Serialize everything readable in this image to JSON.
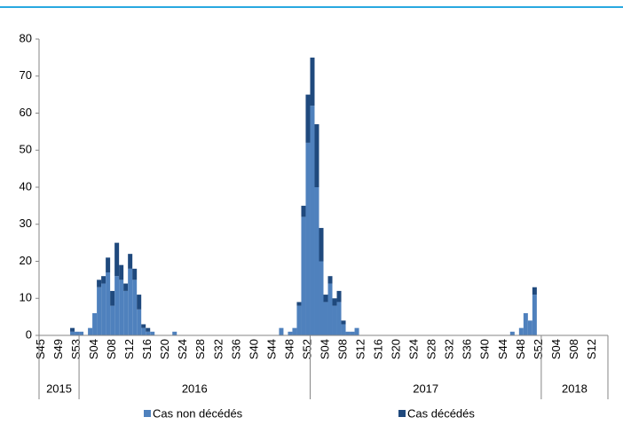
{
  "chart_data": {
    "type": "stacked_bar",
    "categories": [
      "S45",
      null,
      null,
      null,
      "S49",
      null,
      null,
      null,
      "S53",
      null,
      null,
      null,
      "S04",
      null,
      null,
      null,
      "S08",
      null,
      null,
      null,
      "S12",
      null,
      null,
      null,
      "S16",
      null,
      null,
      null,
      "S20",
      null,
      null,
      null,
      "S24",
      null,
      null,
      null,
      "S28",
      null,
      null,
      null,
      "S32",
      null,
      null,
      null,
      "S36",
      null,
      null,
      null,
      "S40",
      null,
      null,
      null,
      "S44",
      null,
      null,
      null,
      "S48",
      null,
      null,
      null,
      "S52",
      null,
      null,
      null,
      "S04",
      null,
      null,
      null,
      "S08",
      null,
      null,
      null,
      "S12",
      null,
      null,
      null,
      "S16",
      null,
      null,
      null,
      "S20",
      null,
      null,
      null,
      "S24",
      null,
      null,
      null,
      "S28",
      null,
      null,
      null,
      "S32",
      null,
      null,
      null,
      "S36",
      null,
      null,
      null,
      "S40",
      null,
      null,
      null,
      "S44",
      null,
      null,
      null,
      "S48",
      null,
      null,
      null,
      "S52",
      null,
      null,
      null,
      "S04",
      null,
      null,
      null,
      "S08",
      null,
      null,
      null,
      "S12",
      null,
      null,
      null
    ],
    "year_groups": [
      {
        "label": "2015",
        "weeks": 9
      },
      {
        "label": "2016",
        "weeks": 52
      },
      {
        "label": "2017",
        "weeks": 52
      },
      {
        "label": "2018",
        "weeks": 15
      }
    ],
    "series": [
      {
        "name": "Cas non décédés",
        "color": "#4f81bd",
        "values": [
          0,
          0,
          0,
          0,
          0,
          0,
          0,
          1,
          1,
          1,
          0,
          2,
          6,
          13,
          14,
          17,
          8,
          16,
          15,
          12,
          18,
          15,
          7,
          2,
          1,
          1,
          0,
          0,
          0,
          0,
          1,
          0,
          0,
          0,
          0,
          0,
          0,
          0,
          0,
          0,
          0,
          0,
          0,
          0,
          0,
          0,
          0,
          0,
          0,
          0,
          0,
          0,
          0,
          0,
          2,
          0,
          1,
          2,
          8,
          32,
          52,
          62,
          40,
          20,
          9,
          14,
          8,
          9,
          3,
          1,
          1,
          2,
          0,
          0,
          0,
          0,
          0,
          0,
          0,
          0,
          0,
          0,
          0,
          0,
          0,
          0,
          0,
          0,
          0,
          0,
          0,
          0,
          0,
          0,
          0,
          0,
          0,
          0,
          0,
          0,
          0,
          0,
          0,
          0,
          0,
          0,
          1,
          0,
          2,
          6,
          4,
          11,
          0,
          0,
          0,
          0,
          0,
          0,
          0,
          0,
          0,
          0,
          0,
          0,
          0,
          0,
          0,
          0
        ]
      },
      {
        "name": "Cas décédés",
        "color": "#1f497d",
        "values": [
          0,
          0,
          0,
          0,
          0,
          0,
          0,
          1,
          0,
          0,
          0,
          0,
          0,
          2,
          2,
          4,
          4,
          9,
          4,
          2,
          4,
          3,
          4,
          1,
          1,
          0,
          0,
          0,
          0,
          0,
          0,
          0,
          0,
          0,
          0,
          0,
          0,
          0,
          0,
          0,
          0,
          0,
          0,
          0,
          0,
          0,
          0,
          0,
          0,
          0,
          0,
          0,
          0,
          0,
          0,
          0,
          0,
          0,
          1,
          3,
          13,
          13,
          17,
          9,
          2,
          2,
          2,
          3,
          1,
          0,
          0,
          0,
          0,
          0,
          0,
          0,
          0,
          0,
          0,
          0,
          0,
          0,
          0,
          0,
          0,
          0,
          0,
          0,
          0,
          0,
          0,
          0,
          0,
          0,
          0,
          0,
          0,
          0,
          0,
          0,
          0,
          0,
          0,
          0,
          0,
          0,
          0,
          0,
          0,
          0,
          0,
          2,
          0,
          0,
          0,
          0,
          0,
          0,
          0,
          0,
          0,
          0,
          0,
          0,
          0,
          0,
          0,
          0
        ]
      }
    ],
    "ylim": [
      0,
      80
    ],
    "yticks": [
      0,
      10,
      20,
      30,
      40,
      50,
      60,
      70,
      80
    ],
    "grid": false,
    "legend": "bottom"
  }
}
